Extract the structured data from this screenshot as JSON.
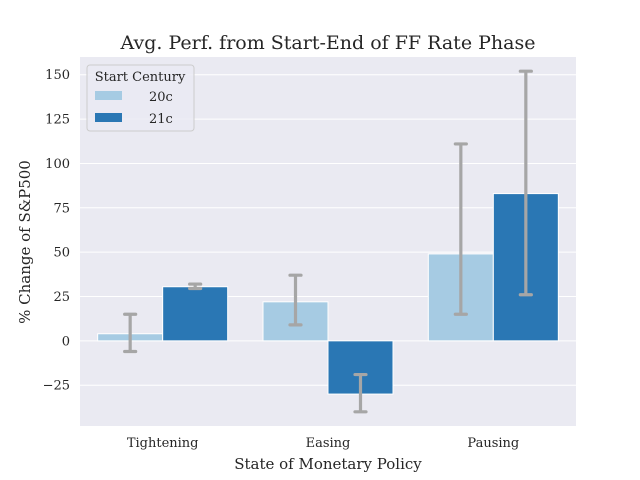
{
  "chart_data": {
    "type": "bar",
    "title": "Avg. Perf. from Start-End of FF Rate Phase",
    "xlabel": "State of Monetary Policy",
    "ylabel": "% Change of S&P500",
    "categories": [
      "Tightening",
      "Easing",
      "Pausing"
    ],
    "yticks": [
      -25,
      0,
      25,
      50,
      75,
      100,
      125,
      150
    ],
    "ytick_labels": [
      "−25",
      "0",
      "25",
      "50",
      "75",
      "100",
      "125",
      "150"
    ],
    "ylim": [
      -48,
      160
    ],
    "grid": true,
    "legend": {
      "title": "Start Century",
      "placement": "top-left"
    },
    "series": [
      {
        "name": "20c",
        "color": "#a6cbe3",
        "values": [
          4,
          22,
          49
        ],
        "err_low": [
          -6,
          9,
          15
        ],
        "err_high": [
          15,
          37,
          111
        ]
      },
      {
        "name": "21c",
        "color": "#2a77b4",
        "values": [
          30.5,
          -30,
          83
        ],
        "err_low": [
          29.5,
          -40,
          26
        ],
        "err_high": [
          32,
          -19,
          152
        ]
      }
    ]
  }
}
